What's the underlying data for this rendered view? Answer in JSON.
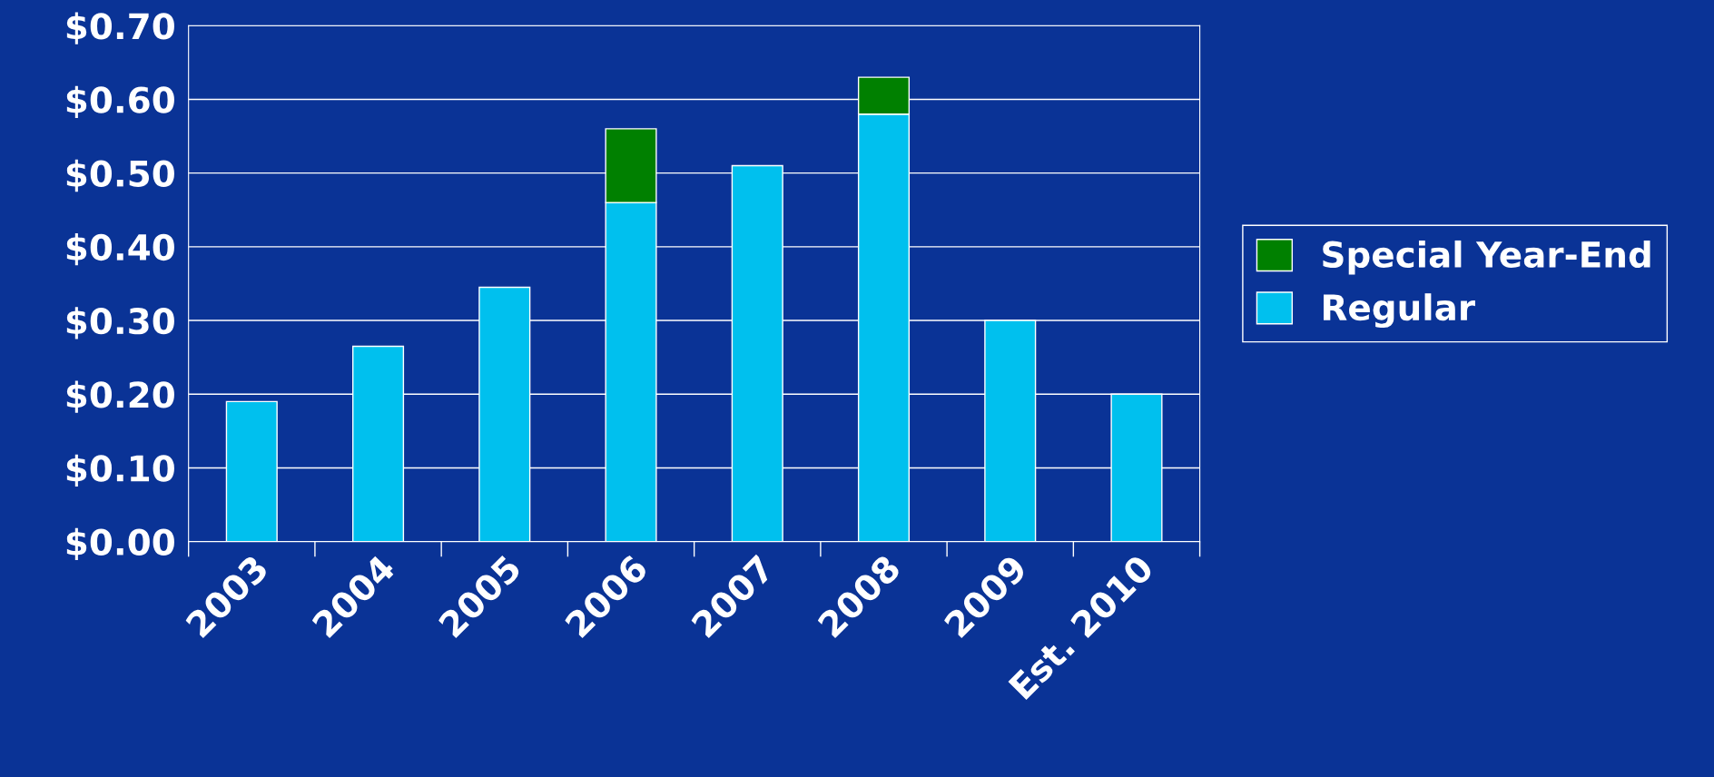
{
  "chart_data": {
    "type": "bar",
    "stacked": true,
    "categories": [
      "2003",
      "2004",
      "2005",
      "2006",
      "2007",
      "2008",
      "2009",
      "Est. 2010"
    ],
    "series": [
      {
        "name": "Regular",
        "color": "#00c0ee",
        "values": [
          0.19,
          0.265,
          0.345,
          0.46,
          0.51,
          0.58,
          0.3,
          0.2
        ]
      },
      {
        "name": "Special Year-End",
        "color": "#008000",
        "values": [
          null,
          null,
          null,
          0.1,
          null,
          0.05,
          null,
          null
        ]
      }
    ],
    "ylim": [
      0,
      0.7
    ],
    "yticks": [
      {
        "value": 0,
        "label": "$0.00"
      },
      {
        "value": 0.1,
        "label": "$0.10"
      },
      {
        "value": 0.2,
        "label": "$0.20"
      },
      {
        "value": 0.3,
        "label": "$0.30"
      },
      {
        "value": 0.4,
        "label": "$0.40"
      },
      {
        "value": 0.5,
        "label": "$0.50"
      },
      {
        "value": 0.6,
        "label": "$0.60"
      },
      {
        "value": 0.7,
        "label": "$0.70"
      }
    ],
    "grid": "y",
    "legend": "right"
  }
}
